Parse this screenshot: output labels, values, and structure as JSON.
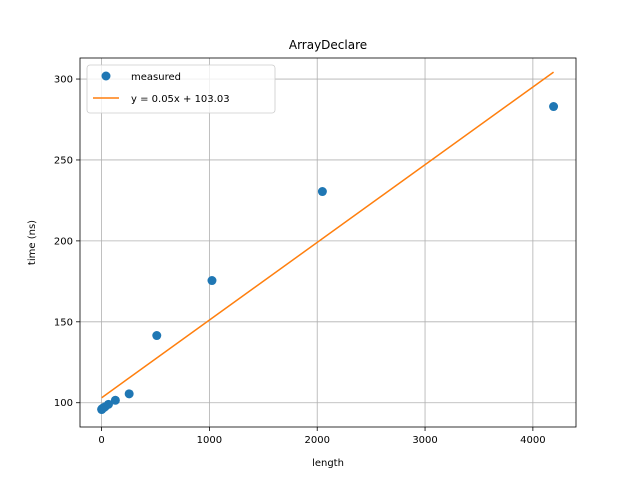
{
  "chart_data": {
    "type": "scatter",
    "title": "ArrayDeclare",
    "xlabel": "length",
    "ylabel": "time (ns)",
    "xlim": [
      -200,
      4400
    ],
    "ylim": [
      85,
      313
    ],
    "xticks": [
      0,
      1000,
      2000,
      3000,
      4000
    ],
    "yticks": [
      100,
      150,
      200,
      250,
      300
    ],
    "grid": true,
    "legend_position": "top-left",
    "series": [
      {
        "name": "measured",
        "kind": "points",
        "color": "#1f77b4",
        "x": [
          1,
          2,
          4,
          8,
          16,
          32,
          64,
          128,
          256,
          512,
          1024,
          2048,
          4192
        ],
        "y": [
          95.8,
          96.0,
          96.2,
          96.4,
          96.8,
          97.5,
          99.0,
          101.5,
          105.5,
          141.5,
          175.5,
          230.5,
          283.0
        ]
      },
      {
        "name": "y = 0.05x + 103.03",
        "kind": "line",
        "color": "#ff7f0e",
        "x": [
          1,
          4192
        ],
        "y": [
          103.1,
          304.3
        ]
      }
    ]
  }
}
